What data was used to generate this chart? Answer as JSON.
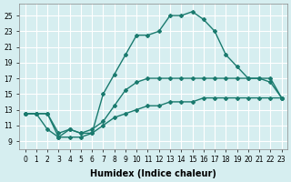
{
  "xlabel": "Humidex (Indice chaleur)",
  "bg_color": "#d6eef0",
  "grid_color": "#ffffff",
  "line_color": "#1a7a6e",
  "line1_x": [
    0,
    1,
    2,
    3,
    4,
    5,
    6,
    7,
    8,
    9,
    10,
    11,
    12,
    13,
    14,
    15,
    16,
    17,
    18,
    19,
    20,
    21,
    22,
    23
  ],
  "line1_y": [
    12.5,
    12.5,
    12.5,
    9.5,
    9.5,
    9.5,
    10.0,
    15.0,
    17.5,
    20.0,
    22.5,
    22.5,
    23.0,
    25.0,
    25.0,
    25.5,
    24.5,
    23.0,
    20.0,
    18.5,
    17.0,
    17.0,
    16.5,
    14.5
  ],
  "line2_x": [
    0,
    1,
    2,
    3,
    4,
    5,
    6,
    7,
    8,
    9,
    10,
    11,
    12,
    13,
    14,
    15,
    16,
    17,
    18,
    19,
    20,
    21,
    22,
    23
  ],
  "line2_y": [
    12.5,
    12.5,
    12.5,
    10.0,
    10.5,
    10.0,
    10.5,
    11.5,
    13.5,
    15.5,
    16.5,
    17.0,
    17.0,
    17.0,
    17.0,
    17.0,
    17.0,
    17.0,
    17.0,
    17.0,
    17.0,
    17.0,
    17.0,
    14.5
  ],
  "line3_x": [
    0,
    1,
    2,
    3,
    4,
    5,
    6,
    7,
    8,
    9,
    10,
    11,
    12,
    13,
    14,
    15,
    16,
    17,
    18,
    19,
    20,
    21,
    22,
    23
  ],
  "line3_y": [
    12.5,
    12.5,
    10.5,
    9.5,
    10.5,
    10.0,
    10.0,
    11.0,
    12.0,
    12.5,
    13.0,
    13.5,
    13.5,
    14.0,
    14.0,
    14.0,
    14.5,
    14.5,
    14.5,
    14.5,
    14.5,
    14.5,
    14.5,
    14.5
  ],
  "xlim": [
    -0.5,
    23.5
  ],
  "ylim": [
    8.0,
    26.5
  ],
  "yticks": [
    9,
    11,
    13,
    15,
    17,
    19,
    21,
    23,
    25
  ],
  "xticks": [
    0,
    1,
    2,
    3,
    4,
    5,
    6,
    7,
    8,
    9,
    10,
    11,
    12,
    13,
    14,
    15,
    16,
    17,
    18,
    19,
    20,
    21,
    22,
    23
  ],
  "xtick_labels": [
    "0",
    "1",
    "2",
    "3",
    "4",
    "5",
    "6",
    "7",
    "8",
    "9",
    "10",
    "11",
    "12",
    "13",
    "14",
    "15",
    "16",
    "17",
    "18",
    "19",
    "20",
    "21",
    "22",
    "23"
  ],
  "marker": "D",
  "markersize": 2.0,
  "linewidth": 1.0,
  "label_fontsize": 7,
  "tick_fontsize": 5.5
}
